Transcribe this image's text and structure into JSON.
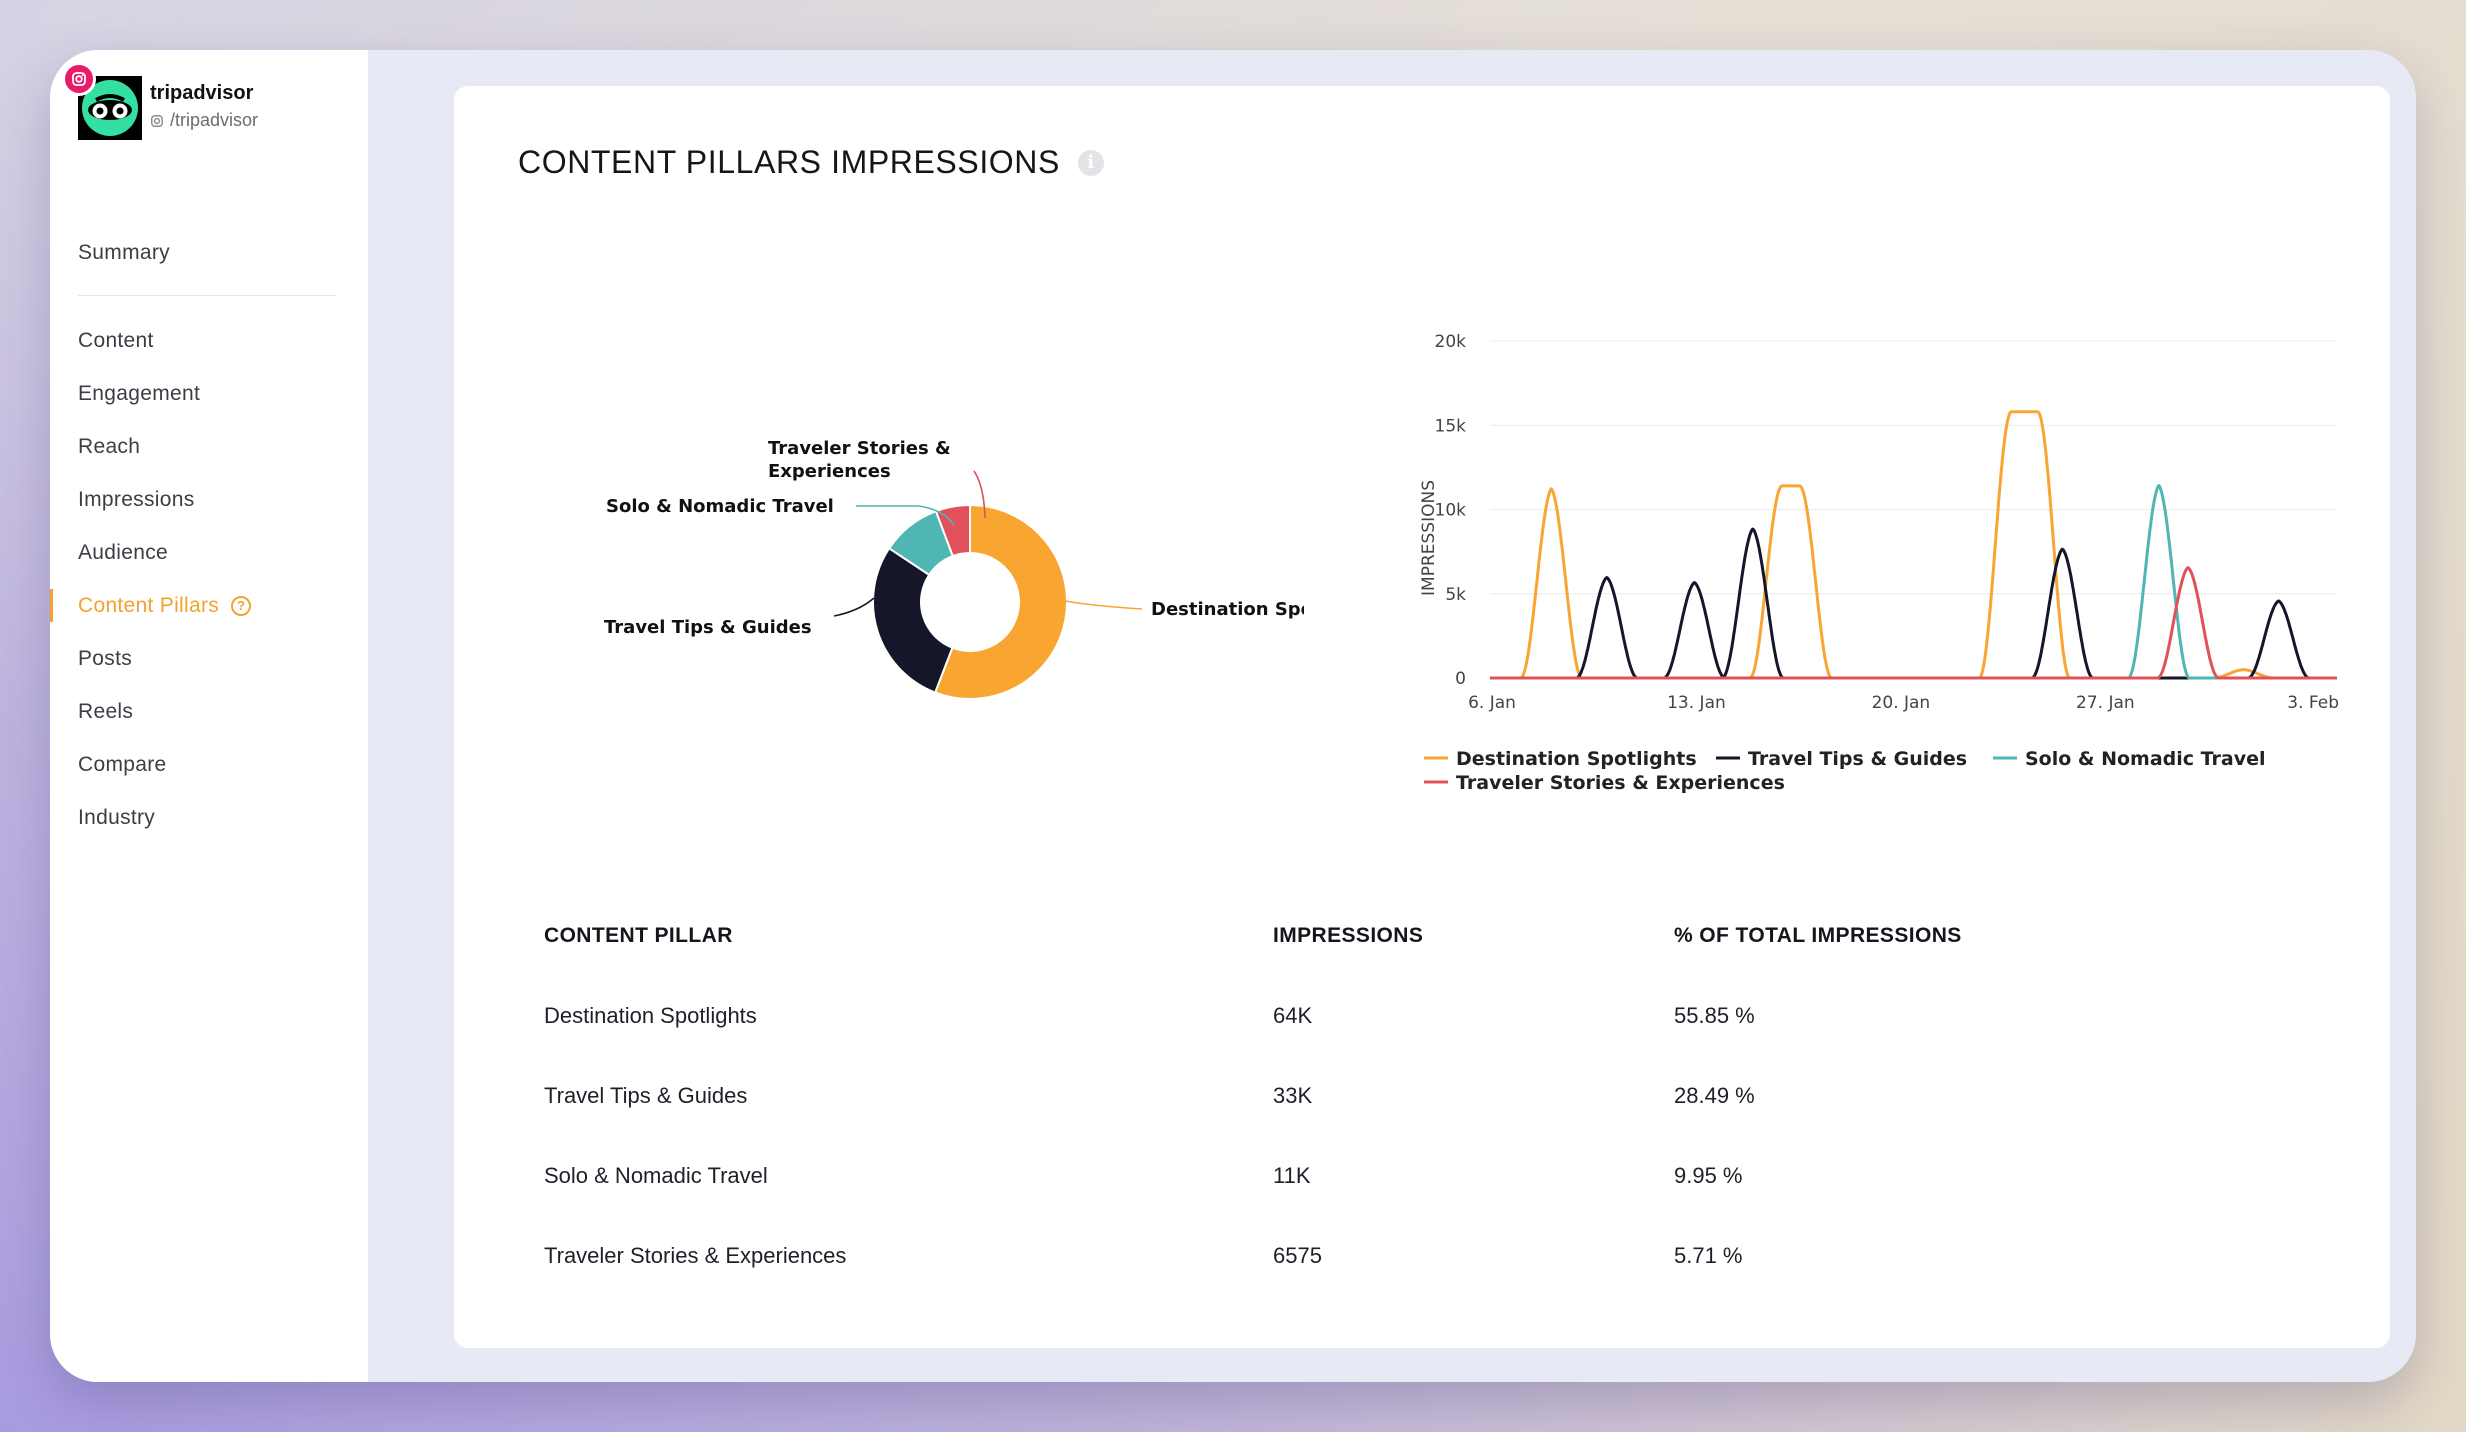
{
  "profile": {
    "name": "tripadvisor",
    "handle": "/tripadvisor",
    "platform_icon": "instagram-icon",
    "brand_color": "#34e0a1"
  },
  "nav": {
    "summary": "Summary",
    "content": "Content",
    "engagement": "Engagement",
    "reach": "Reach",
    "impressions": "Impressions",
    "audience": "Audience",
    "content_pillars": "Content Pillars",
    "posts": "Posts",
    "reels": "Reels",
    "compare": "Compare",
    "industry": "Industry",
    "active_color": "#f3a22d"
  },
  "card": {
    "title": "CONTENT PILLARS IMPRESSIONS"
  },
  "donut": {
    "segments": [
      {
        "label": "Destination Spotlights",
        "pct": 55.85,
        "color": "#f9a531"
      },
      {
        "label": "Travel Tips & Guides",
        "pct": 28.49,
        "color": "#16162b"
      },
      {
        "label": "Solo & Nomadic Travel",
        "pct": 9.95,
        "color": "#4fb6b4"
      },
      {
        "label": "Traveler Stories & Experiences",
        "pct": 5.71,
        "color": "#e0515a"
      }
    ],
    "label_lines": {
      "destination": "Destination Spotlights",
      "travel_tips": "Travel Tips & Guides",
      "solo": "Solo & Nomadic Travel",
      "stories_1": "Traveler Stories &",
      "stories_2": "Experiences"
    }
  },
  "chart_data": {
    "type": "line",
    "ylabel": "IMPRESSIONS",
    "ylim": [
      0,
      20000
    ],
    "yticks": [
      "0",
      "5k",
      "10k",
      "15k",
      "20k"
    ],
    "xticks": [
      "6. Jan",
      "13. Jan",
      "20. Jan",
      "27. Jan",
      "3. Feb"
    ],
    "xrange_days": [
      6,
      35
    ],
    "legend_position": "bottom",
    "series": [
      {
        "name": "Destination Spotlights",
        "color": "#f9a531",
        "peaks": [
          {
            "day": 8.1,
            "value": 11300,
            "width": 1.0
          },
          {
            "day": 16.3,
            "value": 11400,
            "width": 1.7
          },
          {
            "day": 24.3,
            "value": 15800,
            "width": 2.0
          },
          {
            "day": 31.8,
            "value": 500,
            "width": 1.0
          }
        ]
      },
      {
        "name": "Travel Tips & Guides",
        "color": "#16162b",
        "peaks": [
          {
            "day": 10.0,
            "value": 6000,
            "width": 1.0
          },
          {
            "day": 13.0,
            "value": 5700,
            "width": 1.0
          },
          {
            "day": 15.0,
            "value": 8900,
            "width": 1.0
          },
          {
            "day": 25.6,
            "value": 7700,
            "width": 1.0
          },
          {
            "day": 33.0,
            "value": 4600,
            "width": 1.0
          }
        ]
      },
      {
        "name": "Solo & Nomadic Travel",
        "color": "#4fb6b4",
        "peaks": [
          {
            "day": 28.9,
            "value": 11500,
            "width": 1.0
          }
        ]
      },
      {
        "name": "Traveler Stories & Experiences",
        "color": "#e0515a",
        "peaks": [
          {
            "day": 29.9,
            "value": 6600,
            "width": 1.0
          }
        ]
      }
    ]
  },
  "legend": {
    "destination": "Destination Spotlights",
    "travel_tips": "Travel Tips & Guides",
    "solo": "Solo & Nomadic Travel",
    "stories": "Traveler Stories & Experiences"
  },
  "table": {
    "headers": {
      "pillar": "CONTENT PILLAR",
      "impressions": "IMPRESSIONS",
      "pct": "% OF TOTAL IMPRESSIONS"
    },
    "rows": [
      {
        "pillar": "Destination Spotlights",
        "impressions": "64K",
        "pct": "55.85 %"
      },
      {
        "pillar": "Travel Tips & Guides",
        "impressions": "33K",
        "pct": "28.49 %"
      },
      {
        "pillar": "Solo & Nomadic Travel",
        "impressions": "11K",
        "pct": "9.95 %"
      },
      {
        "pillar": "Traveler Stories & Experiences",
        "impressions": "6575",
        "pct": "5.71 %"
      }
    ]
  }
}
